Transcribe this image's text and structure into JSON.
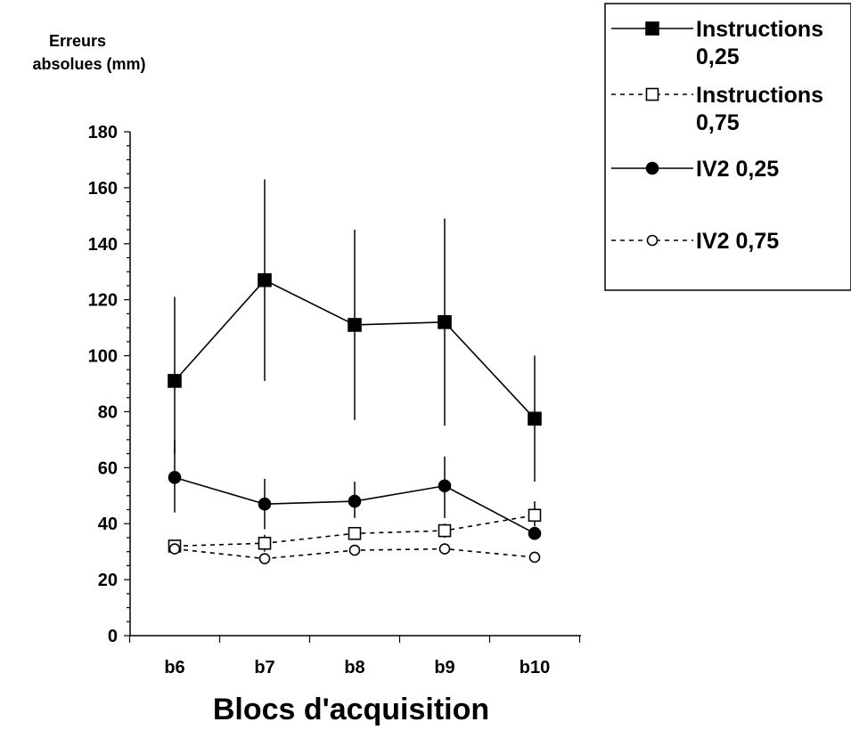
{
  "chart_data": {
    "type": "line",
    "title": "",
    "ylabel": [
      "Erreurs",
      "absolues (mm)"
    ],
    "xlabel": "Blocs d'acquisition",
    "categories": [
      "b6",
      "b7",
      "b8",
      "b9",
      "b10"
    ],
    "ylim": [
      0,
      180
    ],
    "yticks": [
      0,
      20,
      40,
      60,
      80,
      100,
      120,
      140,
      160,
      180
    ],
    "grid": false,
    "legend_position": "top-right",
    "series": [
      {
        "name": [
          "Instructions",
          "0,25"
        ],
        "marker": "square-filled",
        "line": "solid",
        "values": [
          91,
          127,
          111,
          112,
          77.5
        ],
        "error": [
          [
            65,
            121
          ],
          [
            91,
            163
          ],
          [
            77,
            145
          ],
          [
            75,
            149
          ],
          [
            55,
            100
          ]
        ]
      },
      {
        "name": [
          "Instructions",
          "0,75"
        ],
        "marker": "square-open",
        "line": "dashed",
        "values": [
          32,
          33,
          36.5,
          37.5,
          43
        ],
        "error": [
          null,
          [
            30,
            36
          ],
          null,
          [
            35,
            40
          ],
          [
            39,
            48
          ]
        ]
      },
      {
        "name": [
          "IV2 0,25"
        ],
        "marker": "circle-filled",
        "line": "solid",
        "values": [
          56.5,
          47,
          48,
          53.5,
          36.5
        ],
        "error": [
          [
            44,
            70
          ],
          [
            38,
            56
          ],
          [
            42,
            55
          ],
          [
            42,
            64
          ],
          null
        ]
      },
      {
        "name": [
          "IV2 0,75"
        ],
        "marker": "circle-open",
        "line": "dashed",
        "values": [
          31,
          27.5,
          30.5,
          31,
          28
        ],
        "error": [
          null,
          null,
          null,
          null,
          null
        ]
      }
    ]
  }
}
